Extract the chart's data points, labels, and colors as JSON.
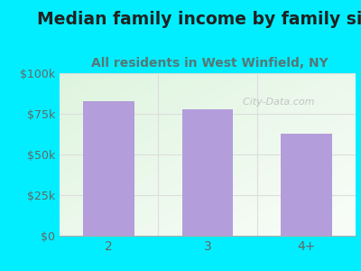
{
  "title": "Median family income by family size",
  "subtitle": "All residents in West Winfield, NY",
  "categories": [
    "2",
    "3",
    "4+"
  ],
  "values": [
    83000,
    78000,
    63000
  ],
  "bar_color": "#b39ddb",
  "background_outer": "#00eeff",
  "ylim": [
    0,
    100000
  ],
  "yticks": [
    0,
    25000,
    50000,
    75000,
    100000
  ],
  "ytick_labels": [
    "$0",
    "$25k",
    "$50k",
    "$75k",
    "$100k"
  ],
  "title_fontsize": 13.5,
  "subtitle_fontsize": 10,
  "title_color": "#222222",
  "subtitle_color": "#557777",
  "tick_color": "#666666",
  "tick_fontsize": 9,
  "xtick_fontsize": 10,
  "watermark": "  City-Data.com",
  "watermark_color": "#bbbbbb",
  "grid_color": "#dddddd",
  "bar_width": 0.52
}
